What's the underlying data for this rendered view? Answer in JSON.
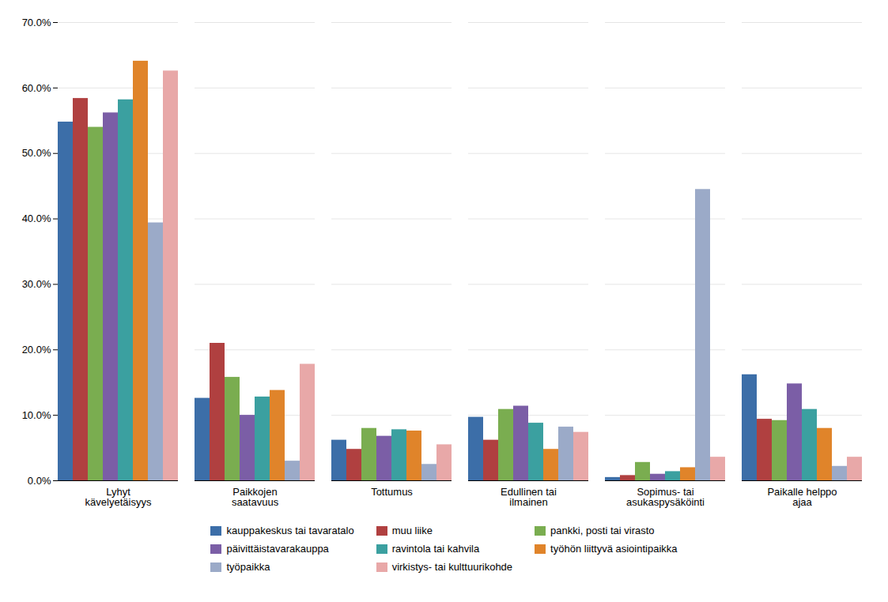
{
  "chart_data": {
    "type": "bar",
    "categories": [
      "Lyhyt\nkävelyetäisyys",
      "Paikkojen\nsaatavuus",
      "Tottumus",
      "Edullinen tai\nilmainen",
      "Sopimus- tai\nasukaspysäköinti",
      "Paikalle helppo\najaa"
    ],
    "series": [
      {
        "name": "kauppakeskus tai tavaratalo",
        "color": "#3C6EA8",
        "values": [
          0.548,
          0.126,
          0.062,
          0.097,
          0.005,
          0.162
        ]
      },
      {
        "name": "muu liike",
        "color": "#B04040",
        "values": [
          0.584,
          0.21,
          0.048,
          0.062,
          0.008,
          0.094
        ]
      },
      {
        "name": "pankki, posti tai virasto",
        "color": "#7AAD50",
        "values": [
          0.54,
          0.158,
          0.08,
          0.109,
          0.028,
          0.092
        ]
      },
      {
        "name": "päivittäistavarakauppa",
        "color": "#7B5EA6",
        "values": [
          0.562,
          0.1,
          0.068,
          0.114,
          0.01,
          0.148
        ]
      },
      {
        "name": "ravintola tai kahvila",
        "color": "#3BA0A0",
        "values": [
          0.582,
          0.128,
          0.078,
          0.088,
          0.014,
          0.109
        ]
      },
      {
        "name": "työhön liittyvä asiointipaikka",
        "color": "#E0842A",
        "values": [
          0.641,
          0.138,
          0.076,
          0.048,
          0.02,
          0.08
        ]
      },
      {
        "name": "työpaikka",
        "color": "#9BAAC8",
        "values": [
          0.394,
          0.03,
          0.025,
          0.082,
          0.445,
          0.022
        ]
      },
      {
        "name": "virkistys- tai kulttuurikohde",
        "color": "#E8A8A8",
        "values": [
          0.626,
          0.178,
          0.055,
          0.074,
          0.036,
          0.036
        ]
      }
    ],
    "ylim": [
      0.0,
      0.7
    ],
    "yticks": [
      {
        "value": 0.0,
        "label": "0.0%"
      },
      {
        "value": 0.1,
        "label": "10.0%"
      },
      {
        "value": 0.2,
        "label": "20.0%"
      },
      {
        "value": 0.3,
        "label": "30.0%"
      },
      {
        "value": 0.4,
        "label": "40.0%"
      },
      {
        "value": 0.5,
        "label": "50.0%"
      },
      {
        "value": 0.6,
        "label": "60.0%"
      },
      {
        "value": 0.7,
        "label": "70.0%"
      }
    ],
    "grid": true,
    "legend": "bottom"
  }
}
